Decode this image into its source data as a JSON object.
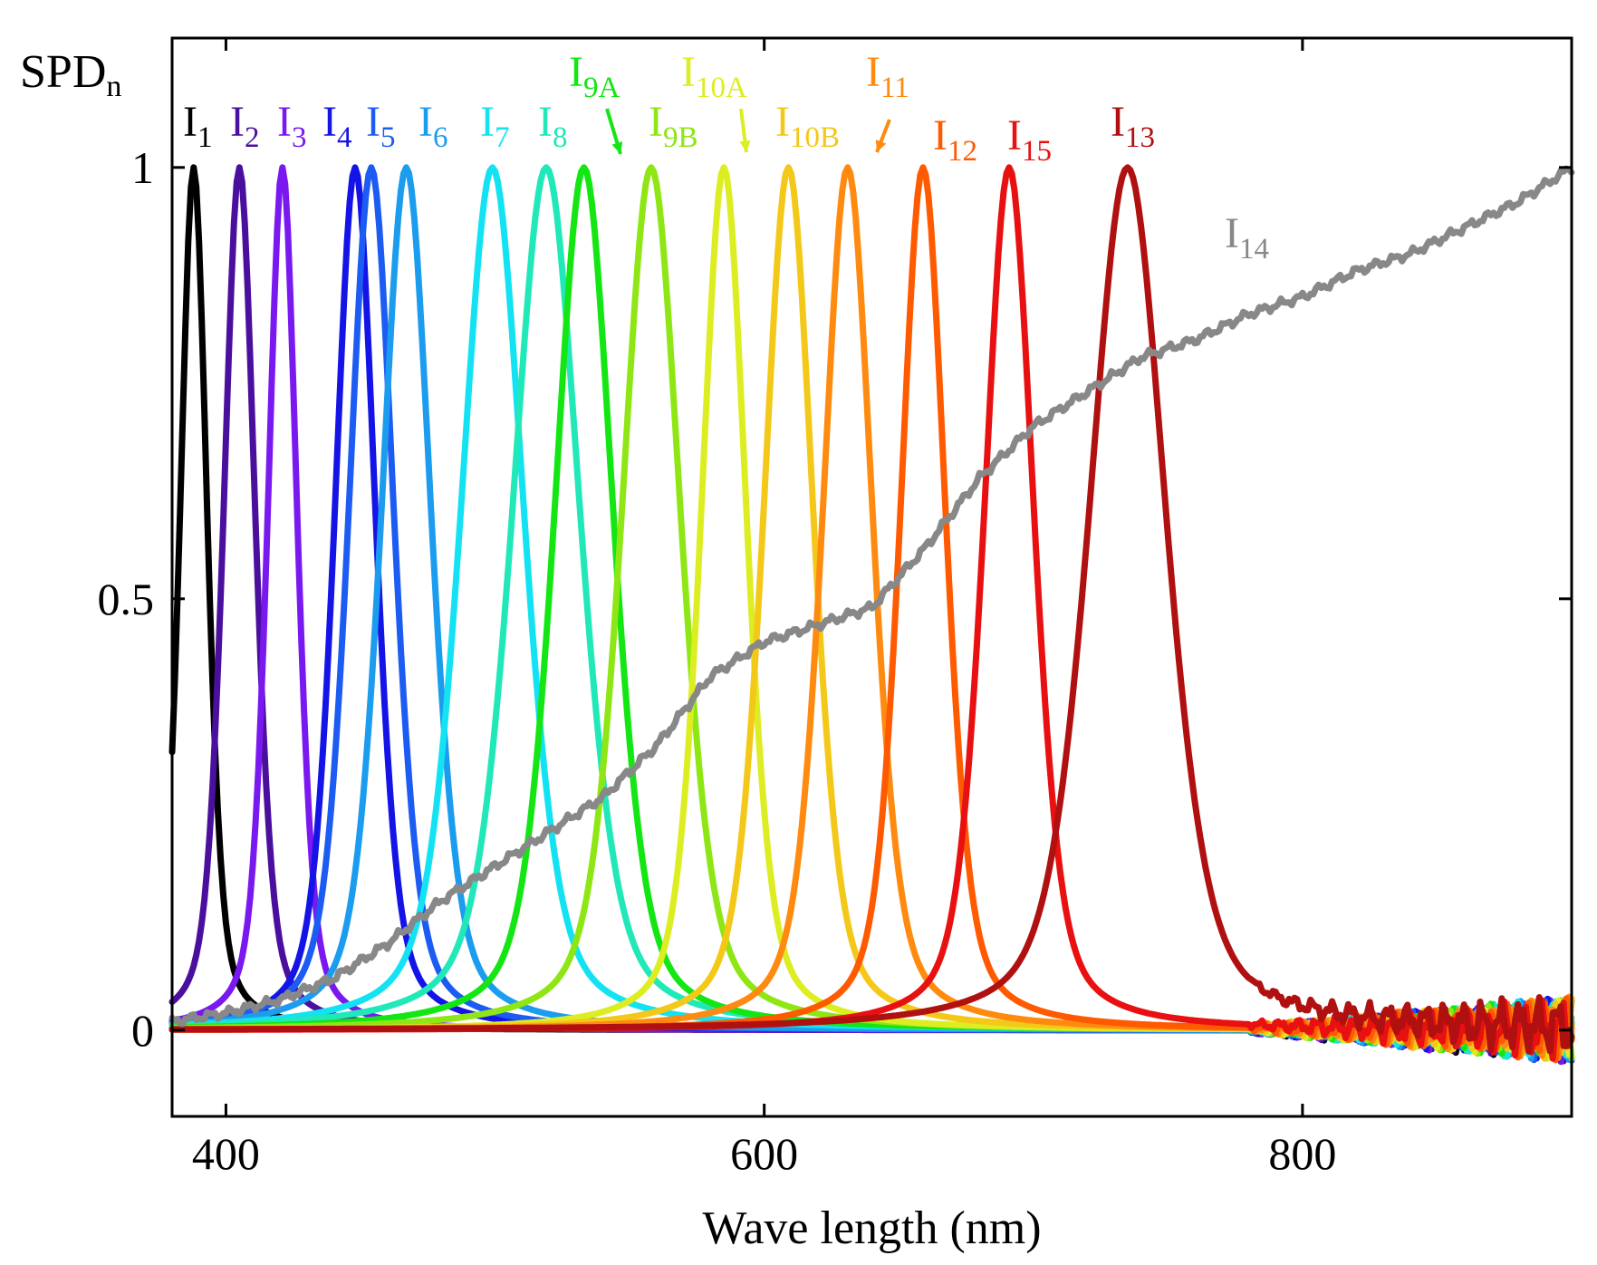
{
  "chart_data": {
    "type": "line",
    "title": "",
    "xlabel": "Wave length (nm)",
    "ylabel": "SPD",
    "ylabel_sub": "n",
    "xlim": [
      380,
      900
    ],
    "ylim": [
      -0.1,
      1.15
    ],
    "xticks": [
      400,
      600,
      800
    ],
    "xtick_labels": [
      "400",
      "600",
      "800"
    ],
    "yticks": [
      0,
      0.5,
      1
    ],
    "ytick_labels": [
      "0",
      "0.5",
      "1"
    ],
    "grid": false,
    "legend": "inline labels above peaks",
    "series": [
      {
        "name": "I1",
        "label_main": "I",
        "label_sub": "1",
        "color": "#000000",
        "peak_nm": 388,
        "fwhm_nm": 12
      },
      {
        "name": "I2",
        "label_main": "I",
        "label_sub": "2",
        "color": "#4b0f9e",
        "peak_nm": 405,
        "fwhm_nm": 14
      },
      {
        "name": "I3",
        "label_main": "I",
        "label_sub": "3",
        "color": "#7a18f0",
        "peak_nm": 421,
        "fwhm_nm": 13
      },
      {
        "name": "I4",
        "label_main": "I",
        "label_sub": "4",
        "color": "#1414e6",
        "peak_nm": 448,
        "fwhm_nm": 18
      },
      {
        "name": "I5",
        "label_main": "I",
        "label_sub": "5",
        "color": "#1c5cf2",
        "peak_nm": 454,
        "fwhm_nm": 20
      },
      {
        "name": "I6",
        "label_main": "I",
        "label_sub": "6",
        "color": "#1c9cee",
        "peak_nm": 467,
        "fwhm_nm": 22
      },
      {
        "name": "I7",
        "label_main": "I",
        "label_sub": "7",
        "color": "#12e2f2",
        "peak_nm": 499,
        "fwhm_nm": 28
      },
      {
        "name": "I8",
        "label_main": "I",
        "label_sub": "8",
        "color": "#20e8b8",
        "peak_nm": 519,
        "fwhm_nm": 30
      },
      {
        "name": "I9A",
        "label_main": "I",
        "label_sub": "9A",
        "color": "#14e614",
        "peak_nm": 533,
        "fwhm_nm": 26
      },
      {
        "name": "I9B",
        "label_main": "I",
        "label_sub": "9B",
        "color": "#8ee614",
        "peak_nm": 558,
        "fwhm_nm": 26
      },
      {
        "name": "I10A",
        "label_main": "I",
        "label_sub": "10A",
        "color": "#dcee22",
        "peak_nm": 585,
        "fwhm_nm": 20
      },
      {
        "name": "I10B",
        "label_main": "I",
        "label_sub": "10B",
        "color": "#f4c818",
        "peak_nm": 609,
        "fwhm_nm": 22
      },
      {
        "name": "I11",
        "label_main": "I",
        "label_sub": "11",
        "color": "#ff8a10",
        "peak_nm": 631,
        "fwhm_nm": 22
      },
      {
        "name": "I12",
        "label_main": "I",
        "label_sub": "12",
        "color": "#ff5a00",
        "peak_nm": 659,
        "fwhm_nm": 20
      },
      {
        "name": "I15",
        "label_main": "I",
        "label_sub": "15",
        "color": "#e81010",
        "peak_nm": 691,
        "fwhm_nm": 22
      },
      {
        "name": "I13",
        "label_main": "I",
        "label_sub": "13",
        "color": "#b01010",
        "peak_nm": 735,
        "fwhm_nm": 34
      },
      {
        "name": "I14",
        "label_main": "I",
        "label_sub": "14",
        "color": "#888888",
        "broadband": true,
        "x": [
          380,
          400,
          420,
          440,
          460,
          480,
          500,
          520,
          540,
          560,
          580,
          600,
          620,
          640,
          660,
          680,
          700,
          720,
          740,
          760,
          780,
          800,
          820,
          840,
          860,
          880,
          900
        ],
        "y": [
          0.01,
          0.02,
          0.035,
          0.06,
          0.1,
          0.15,
          0.19,
          0.23,
          0.27,
          0.33,
          0.41,
          0.45,
          0.47,
          0.49,
          0.56,
          0.64,
          0.7,
          0.74,
          0.78,
          0.8,
          0.83,
          0.85,
          0.88,
          0.9,
          0.93,
          0.96,
          1.0
        ]
      }
    ]
  }
}
